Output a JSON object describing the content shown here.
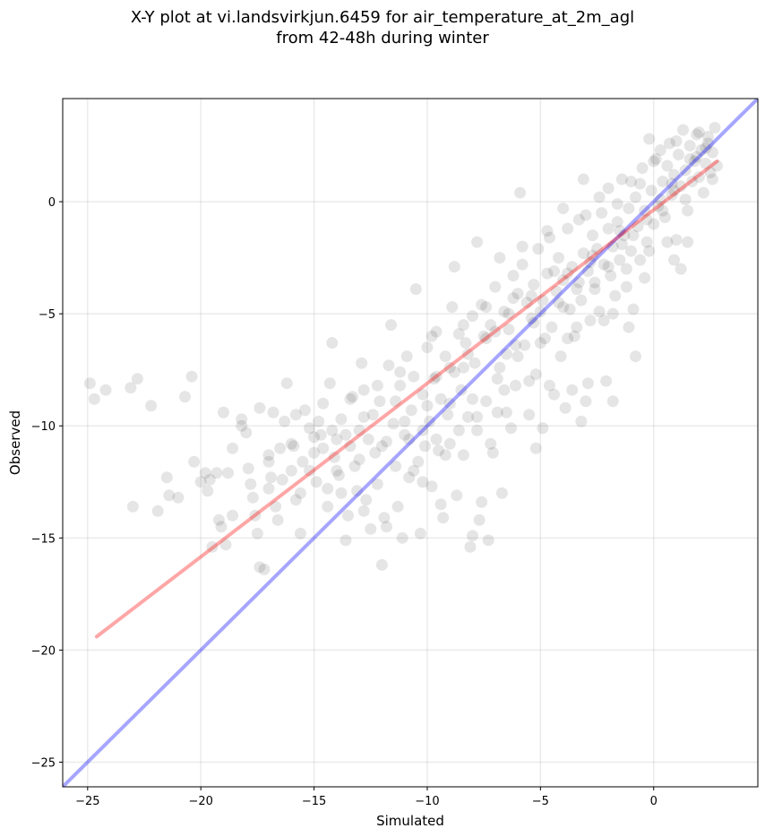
{
  "chart_data": {
    "type": "scatter",
    "title_line1": "X-Y plot at vi.landsvirkjun.6459 for air_temperature_at_2m_agl",
    "title_line2": "from 42-48h during winter",
    "xlabel": "Simulated",
    "ylabel": "Observed",
    "xlim": [
      -26.1,
      4.6
    ],
    "ylim": [
      -26.1,
      4.6
    ],
    "xticks": [
      -25,
      -20,
      -15,
      -10,
      -5,
      0
    ],
    "yticks": [
      -25,
      -20,
      -15,
      -10,
      -5,
      0
    ],
    "xtick_labels": [
      "−25",
      "−20",
      "−15",
      "−10",
      "−5",
      "0"
    ],
    "ytick_labels": [
      "−25",
      "−20",
      "−15",
      "−10",
      "−5",
      "0"
    ],
    "grid": true,
    "point_color": "#000000",
    "point_alpha": 0.1,
    "identity_line": {
      "color": "#0000ff",
      "alpha": 0.35,
      "x": [
        -26.1,
        4.6
      ],
      "y": [
        -26.1,
        4.6
      ]
    },
    "fit_line": {
      "color": "#ff0000",
      "alpha": 0.35,
      "x": [
        -24.6,
        2.8
      ],
      "y": [
        -19.4,
        1.8
      ]
    },
    "points": [
      [
        -24.9,
        -8.1
      ],
      [
        -24.7,
        -8.8
      ],
      [
        -24.2,
        -8.4
      ],
      [
        -23.1,
        -8.3
      ],
      [
        -22.8,
        -7.9
      ],
      [
        -22.2,
        -9.1
      ],
      [
        -23.0,
        -13.6
      ],
      [
        -21.9,
        -13.8
      ],
      [
        -21.5,
        -12.3
      ],
      [
        -21.4,
        -13.1
      ],
      [
        -21.0,
        -13.2
      ],
      [
        -20.7,
        -8.7
      ],
      [
        -20.4,
        -7.8
      ],
      [
        -20.3,
        -11.6
      ],
      [
        -20.0,
        -12.5
      ],
      [
        -19.8,
        -12.1
      ],
      [
        -19.7,
        -12.9
      ],
      [
        -19.5,
        -15.4
      ],
      [
        -19.3,
        -12.1
      ],
      [
        -19.2,
        -14.2
      ],
      [
        -19.1,
        -14.5
      ],
      [
        -19.0,
        -9.4
      ],
      [
        -18.8,
        -12.1
      ],
      [
        -18.9,
        -15.3
      ],
      [
        -18.6,
        -11.0
      ],
      [
        -18.2,
        -10.0
      ],
      [
        -18.2,
        -9.7
      ],
      [
        -17.9,
        -11.9
      ],
      [
        -17.7,
        -13.2
      ],
      [
        -17.6,
        -14.0
      ],
      [
        -17.5,
        -14.8
      ],
      [
        -17.4,
        -16.3
      ],
      [
        -17.2,
        -16.4
      ],
      [
        -17.4,
        -9.2
      ],
      [
        -17.0,
        -11.3
      ],
      [
        -16.9,
        -12.3
      ],
      [
        -16.7,
        -13.6
      ],
      [
        -16.5,
        -11.0
      ],
      [
        -16.3,
        -9.8
      ],
      [
        -16.2,
        -8.1
      ],
      [
        -16.0,
        -12.0
      ],
      [
        -15.9,
        -10.9
      ],
      [
        -15.8,
        -13.3
      ],
      [
        -15.6,
        -14.8
      ],
      [
        -15.5,
        -11.6
      ],
      [
        -15.4,
        -9.3
      ],
      [
        -15.2,
        -10.1
      ],
      [
        -15.0,
        -11.2
      ],
      [
        -14.9,
        -12.5
      ],
      [
        -14.7,
        -10.4
      ],
      [
        -14.6,
        -9.0
      ],
      [
        -14.4,
        -13.6
      ],
      [
        -14.3,
        -8.1
      ],
      [
        -14.2,
        -6.3
      ],
      [
        -14.1,
        -11.4
      ],
      [
        -14.0,
        -10.6
      ],
      [
        -13.9,
        -12.2
      ],
      [
        -13.8,
        -9.7
      ],
      [
        -13.6,
        -15.1
      ],
      [
        -13.5,
        -14.0
      ],
      [
        -13.4,
        -10.9
      ],
      [
        -13.3,
        -8.7
      ],
      [
        -13.2,
        -11.8
      ],
      [
        -13.1,
        -12.9
      ],
      [
        -13.0,
        -10.2
      ],
      [
        -12.9,
        -7.2
      ],
      [
        -12.8,
        -8.4
      ],
      [
        -12.7,
        -13.3
      ],
      [
        -12.5,
        -14.6
      ],
      [
        -12.4,
        -9.5
      ],
      [
        -12.3,
        -11.2
      ],
      [
        -12.2,
        -12.6
      ],
      [
        -12.1,
        -8.9
      ],
      [
        -12.0,
        -16.2
      ],
      [
        -11.9,
        -14.1
      ],
      [
        -11.8,
        -10.7
      ],
      [
        -11.7,
        -7.3
      ],
      [
        -11.6,
        -5.5
      ],
      [
        -11.5,
        -9.9
      ],
      [
        -11.4,
        -11.8
      ],
      [
        -11.3,
        -13.6
      ],
      [
        -11.2,
        -8.2
      ],
      [
        -11.1,
        -15.0
      ],
      [
        -11.0,
        -10.4
      ],
      [
        -10.9,
        -6.9
      ],
      [
        -10.8,
        -12.3
      ],
      [
        -10.7,
        -9.3
      ],
      [
        -10.6,
        -7.8
      ],
      [
        -10.5,
        -3.9
      ],
      [
        -10.4,
        -11.6
      ],
      [
        -10.3,
        -14.8
      ],
      [
        -10.2,
        -8.6
      ],
      [
        -10.1,
        -10.9
      ],
      [
        -10.0,
        -6.5
      ],
      [
        -9.9,
        -9.8
      ],
      [
        -9.8,
        -12.7
      ],
      [
        -9.7,
        -7.9
      ],
      [
        -9.6,
        -5.8
      ],
      [
        -9.5,
        -11.1
      ],
      [
        -9.4,
        -8.8
      ],
      [
        -9.3,
        -14.1
      ],
      [
        -9.2,
        -6.9
      ],
      [
        -9.1,
        -9.5
      ],
      [
        -9.0,
        -10.8
      ],
      [
        -8.9,
        -4.7
      ],
      [
        -8.8,
        -7.6
      ],
      [
        -8.7,
        -13.1
      ],
      [
        -8.6,
        -5.9
      ],
      [
        -8.5,
        -8.4
      ],
      [
        -8.4,
        -11.3
      ],
      [
        -8.3,
        -6.3
      ],
      [
        -8.2,
        -9.6
      ],
      [
        -8.1,
        -15.4
      ],
      [
        -8.0,
        -5.1
      ],
      [
        -7.9,
        -7.2
      ],
      [
        -7.8,
        -10.2
      ],
      [
        -7.7,
        -14.2
      ],
      [
        -7.6,
        -4.6
      ],
      [
        -7.5,
        -6.0
      ],
      [
        -7.4,
        -8.9
      ],
      [
        -7.3,
        -15.1
      ],
      [
        -7.2,
        -5.5
      ],
      [
        -7.1,
        -11.2
      ],
      [
        -7.0,
        -3.8
      ],
      [
        -6.9,
        -9.4
      ],
      [
        -6.8,
        -7.4
      ],
      [
        -6.7,
        -13.0
      ],
      [
        -6.6,
        -4.9
      ],
      [
        -6.5,
        -6.8
      ],
      [
        -6.4,
        -5.7
      ],
      [
        -6.3,
        -10.1
      ],
      [
        -6.2,
        -3.3
      ],
      [
        -6.1,
        -8.2
      ],
      [
        -6.0,
        -4.1
      ],
      [
        -5.9,
        0.4
      ],
      [
        -5.8,
        -2.8
      ],
      [
        -5.7,
        -6.4
      ],
      [
        -5.6,
        -4.5
      ],
      [
        -5.5,
        -9.5
      ],
      [
        -5.4,
        -5.2
      ],
      [
        -5.3,
        -3.7
      ],
      [
        -5.2,
        -7.7
      ],
      [
        -5.1,
        -2.1
      ],
      [
        -5.0,
        -4.9
      ],
      [
        -4.9,
        -10.1
      ],
      [
        -4.8,
        -6.1
      ],
      [
        -4.7,
        -3.2
      ],
      [
        -4.6,
        -1.6
      ],
      [
        -4.5,
        -5.6
      ],
      [
        -4.4,
        -8.6
      ],
      [
        -4.3,
        -4.0
      ],
      [
        -4.2,
        -2.5
      ],
      [
        -4.1,
        -6.9
      ],
      [
        -4.0,
        -3.5
      ],
      [
        -3.9,
        -9.2
      ],
      [
        -3.8,
        -1.2
      ],
      [
        -3.7,
        -4.8
      ],
      [
        -3.6,
        -2.9
      ],
      [
        -3.5,
        -6.0
      ],
      [
        -3.4,
        -3.9
      ],
      [
        -3.3,
        -0.8
      ],
      [
        -3.2,
        -4.4
      ],
      [
        -3.1,
        -2.3
      ],
      [
        -3.0,
        -8.9
      ],
      [
        -2.9,
        -3.1
      ],
      [
        -2.8,
        -5.3
      ],
      [
        -2.7,
        -1.5
      ],
      [
        -2.6,
        -3.6
      ],
      [
        -2.5,
        -2.1
      ],
      [
        -2.4,
        -4.9
      ],
      [
        -2.3,
        -0.5
      ],
      [
        -2.2,
        -2.8
      ],
      [
        -2.1,
        -8.0
      ],
      [
        -2.0,
        -1.2
      ],
      [
        -1.9,
        -3.3
      ],
      [
        -1.8,
        -2.0
      ],
      [
        -1.7,
        -4.2
      ],
      [
        -1.6,
        -0.9
      ],
      [
        -1.5,
        -2.6
      ],
      [
        -1.4,
        1.0
      ],
      [
        -1.3,
        -1.5
      ],
      [
        -1.2,
        -3.0
      ],
      [
        -1.1,
        -0.3
      ],
      [
        -1.0,
        -2.2
      ],
      [
        -0.9,
        -4.8
      ],
      [
        -0.8,
        0.2
      ],
      [
        -0.7,
        -1.1
      ],
      [
        -0.6,
        -2.6
      ],
      [
        -0.5,
        1.5
      ],
      [
        -0.4,
        -0.4
      ],
      [
        -0.3,
        -1.8
      ],
      [
        -0.2,
        2.8
      ],
      [
        -0.1,
        0.5
      ],
      [
        0.0,
        -1.0
      ],
      [
        0.1,
        1.9
      ],
      [
        0.2,
        -0.2
      ],
      [
        0.3,
        2.3
      ],
      [
        0.4,
        0.9
      ],
      [
        0.5,
        -0.7
      ],
      [
        0.6,
        1.6
      ],
      [
        0.7,
        2.6
      ],
      [
        0.8,
        0.3
      ],
      [
        0.9,
        1.2
      ],
      [
        1.0,
        -1.7
      ],
      [
        1.1,
        2.1
      ],
      [
        1.2,
        0.7
      ],
      [
        1.3,
        3.2
      ],
      [
        1.4,
        1.4
      ],
      [
        1.5,
        -0.4
      ],
      [
        1.6,
        2.5
      ],
      [
        1.7,
        0.9
      ],
      [
        1.8,
        1.8
      ],
      [
        1.9,
        3.0
      ],
      [
        2.0,
        1.1
      ],
      [
        2.1,
        2.3
      ],
      [
        2.2,
        0.4
      ],
      [
        2.3,
        1.7
      ],
      [
        2.4,
        2.9
      ],
      [
        2.5,
        1.3
      ],
      [
        2.6,
        2.2
      ],
      [
        2.7,
        3.3
      ],
      [
        2.8,
        1.6
      ],
      [
        1.2,
        -3.0
      ],
      [
        0.6,
        -1.8
      ],
      [
        -0.4,
        -3.4
      ],
      [
        -1.2,
        -3.8
      ],
      [
        -1.8,
        -5.0
      ],
      [
        -2.6,
        -3.9
      ],
      [
        -3.4,
        -5.6
      ],
      [
        -4.2,
        -4.5
      ],
      [
        -5.0,
        -6.3
      ],
      [
        -6.0,
        -6.9
      ],
      [
        -7.0,
        -5.8
      ],
      [
        -8.0,
        -8.8
      ],
      [
        -9.0,
        -7.4
      ],
      [
        -10.0,
        -9.1
      ],
      [
        -11.0,
        -9.8
      ],
      [
        -12.0,
        -10.9
      ],
      [
        -13.0,
        -11.5
      ],
      [
        -14.0,
        -12.0
      ],
      [
        -15.0,
        -10.5
      ],
      [
        -16.0,
        -10.8
      ],
      [
        -17.0,
        -11.6
      ],
      [
        -18.0,
        -10.3
      ],
      [
        -4.0,
        -0.3
      ],
      [
        -3.0,
        -0.6
      ],
      [
        -2.0,
        0.6
      ],
      [
        -1.0,
        0.9
      ],
      [
        0.0,
        1.8
      ],
      [
        1.0,
        2.7
      ],
      [
        2.0,
        3.1
      ],
      [
        -6.5,
        -9.4
      ],
      [
        -5.5,
        -8.0
      ],
      [
        -3.6,
        -8.4
      ],
      [
        -2.9,
        -8.1
      ],
      [
        -1.8,
        -8.9
      ],
      [
        -0.8,
        -6.9
      ],
      [
        -10.2,
        -12.5
      ],
      [
        -9.4,
        -13.5
      ],
      [
        -8.0,
        -14.9
      ],
      [
        -7.6,
        -13.4
      ],
      [
        -11.8,
        -14.5
      ],
      [
        -12.8,
        -13.8
      ],
      [
        -14.4,
        -12.8
      ],
      [
        -15.6,
        -13.0
      ],
      [
        -16.6,
        -14.2
      ],
      [
        -8.8,
        -2.9
      ],
      [
        -7.8,
        -1.8
      ],
      [
        -6.8,
        -2.5
      ],
      [
        -3.8,
        -6.1
      ],
      [
        -2.2,
        -5.3
      ],
      [
        -1.1,
        -5.6
      ],
      [
        -0.2,
        -2.2
      ],
      [
        1.5,
        -1.8
      ],
      [
        0.9,
        -2.6
      ],
      [
        -5.8,
        -2.0
      ],
      [
        -4.7,
        -1.3
      ],
      [
        -3.1,
        1.0
      ],
      [
        -2.4,
        0.2
      ],
      [
        -1.6,
        -0.1
      ],
      [
        -6.2,
        -4.3
      ],
      [
        -7.4,
        -4.7
      ],
      [
        -8.4,
        -5.5
      ],
      [
        -9.8,
        -6.0
      ],
      [
        -11.2,
        -7.6
      ],
      [
        -12.2,
        -8.2
      ],
      [
        -13.4,
        -8.8
      ],
      [
        -14.8,
        -9.8
      ],
      [
        -15.8,
        -9.5
      ],
      [
        -16.8,
        -9.4
      ],
      [
        -17.8,
        -12.6
      ],
      [
        -18.6,
        -14.0
      ],
      [
        -19.6,
        -12.4
      ],
      [
        -13.8,
        -13.0
      ],
      [
        -10.6,
        -12.0
      ],
      [
        -9.2,
        -11.3
      ],
      [
        -7.2,
        -10.8
      ],
      [
        -5.2,
        -11.0
      ],
      [
        -3.2,
        -9.8
      ],
      [
        -4.6,
        -8.2
      ],
      [
        -6.6,
        -8.4
      ],
      [
        -8.6,
        -10.2
      ],
      [
        -10.8,
        -10.6
      ],
      [
        -12.6,
        -10.6
      ],
      [
        -14.6,
        -11.0
      ],
      [
        0.4,
        -0.4
      ],
      [
        0.8,
        0.8
      ],
      [
        1.6,
        1.9
      ],
      [
        2.4,
        2.6
      ],
      [
        -0.6,
        0.8
      ],
      [
        -1.4,
        -1.9
      ],
      [
        -2.8,
        -2.7
      ],
      [
        -3.8,
        -3.2
      ],
      [
        -4.4,
        -3.1
      ],
      [
        -5.4,
        -4.2
      ],
      [
        -6.4,
        -5.0
      ],
      [
        -7.4,
        -6.1
      ],
      [
        -8.2,
        -6.8
      ],
      [
        -9.6,
        -7.8
      ],
      [
        -11.4,
        -8.9
      ],
      [
        -12.8,
        -9.6
      ],
      [
        -13.6,
        -10.4
      ],
      [
        -14.2,
        -10.2
      ],
      [
        -15.2,
        -12.0
      ],
      [
        -16.4,
        -12.4
      ],
      [
        -17.0,
        -12.8
      ],
      [
        -10.2,
        -10.2
      ],
      [
        -9.6,
        -10.6
      ],
      [
        -9.0,
        -9.0
      ],
      [
        -8.4,
        -7.4
      ],
      [
        -7.8,
        -9.6
      ],
      [
        -6.9,
        -7.9
      ],
      [
        -6.1,
        -6.4
      ],
      [
        -5.3,
        -5.4
      ],
      [
        -4.9,
        -4.4
      ],
      [
        -4.0,
        -4.7
      ],
      [
        -3.3,
        -3.6
      ],
      [
        -2.7,
        -2.4
      ],
      [
        -2.0,
        -2.9
      ],
      [
        -1.5,
        -1.3
      ],
      [
        -0.9,
        -1.5
      ],
      [
        -0.3,
        -0.8
      ],
      [
        0.3,
        0.1
      ],
      [
        0.9,
        0.5
      ],
      [
        1.4,
        0.1
      ],
      [
        1.9,
        2.0
      ],
      [
        2.3,
        2.4
      ],
      [
        2.6,
        1.0
      ]
    ]
  }
}
